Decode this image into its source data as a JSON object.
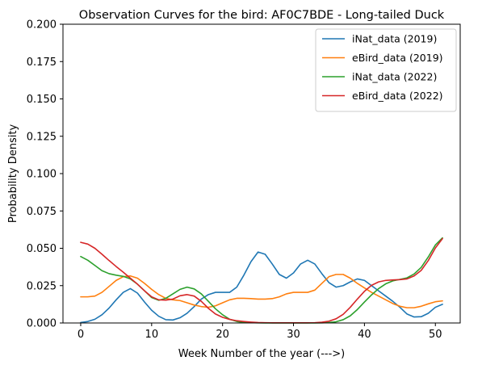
{
  "chart_data": {
    "type": "line",
    "title": "Observation Curves for the bird: AF0C7BDE - Long-tailed Duck",
    "xlabel": "Week Number of the year (--->)",
    "ylabel": "Probability Density",
    "xlim": [
      -2.5,
      53.5
    ],
    "ylim": [
      0,
      0.2
    ],
    "x_ticks": [
      0,
      10,
      20,
      30,
      40,
      50
    ],
    "y_ticks": [
      0.0,
      0.025,
      0.05,
      0.075,
      0.1,
      0.125,
      0.15,
      0.175,
      0.2
    ],
    "y_tick_labels": [
      "0.000",
      "0.025",
      "0.050",
      "0.075",
      "0.100",
      "0.125",
      "0.150",
      "0.175",
      "0.200"
    ],
    "grid": false,
    "legend_position": "upper right",
    "x": [
      0,
      1,
      2,
      3,
      4,
      5,
      6,
      7,
      8,
      9,
      10,
      11,
      12,
      13,
      14,
      15,
      16,
      17,
      18,
      19,
      20,
      21,
      22,
      23,
      24,
      25,
      26,
      27,
      28,
      29,
      30,
      31,
      32,
      33,
      34,
      35,
      36,
      37,
      38,
      39,
      40,
      41,
      42,
      43,
      44,
      45,
      46,
      47,
      48,
      49,
      50,
      51
    ],
    "series": [
      {
        "name": "iNat_data (2019)",
        "color": "#1f77b4",
        "values": [
          0.0003,
          0.001,
          0.0025,
          0.0055,
          0.01,
          0.0155,
          0.0205,
          0.023,
          0.02,
          0.014,
          0.0085,
          0.0045,
          0.0022,
          0.002,
          0.0035,
          0.0065,
          0.011,
          0.016,
          0.019,
          0.0205,
          0.0205,
          0.0205,
          0.024,
          0.032,
          0.041,
          0.0475,
          0.046,
          0.0395,
          0.0325,
          0.03,
          0.0335,
          0.0395,
          0.042,
          0.0395,
          0.033,
          0.027,
          0.024,
          0.025,
          0.0275,
          0.0295,
          0.0285,
          0.025,
          0.0215,
          0.018,
          0.0145,
          0.0105,
          0.006,
          0.004,
          0.0042,
          0.0065,
          0.0105,
          0.0125
        ]
      },
      {
        "name": "eBird_data (2019)",
        "color": "#ff7f0e",
        "values": [
          0.0175,
          0.0175,
          0.018,
          0.0205,
          0.0245,
          0.0285,
          0.031,
          0.0315,
          0.03,
          0.0265,
          0.0225,
          0.019,
          0.0165,
          0.0155,
          0.015,
          0.0135,
          0.012,
          0.011,
          0.0105,
          0.0115,
          0.0135,
          0.0155,
          0.0165,
          0.0165,
          0.0163,
          0.016,
          0.016,
          0.0163,
          0.0175,
          0.0195,
          0.0205,
          0.0205,
          0.0205,
          0.022,
          0.0265,
          0.031,
          0.0325,
          0.0325,
          0.03,
          0.0265,
          0.0235,
          0.0205,
          0.018,
          0.0155,
          0.013,
          0.0112,
          0.0102,
          0.0102,
          0.0112,
          0.0128,
          0.0142,
          0.0148
        ]
      },
      {
        "name": "iNat_data (2022)",
        "color": "#2ca02c",
        "values": [
          0.0445,
          0.042,
          0.0385,
          0.035,
          0.033,
          0.032,
          0.0312,
          0.0295,
          0.026,
          0.0215,
          0.017,
          0.0152,
          0.0165,
          0.0195,
          0.0225,
          0.024,
          0.0228,
          0.0195,
          0.0145,
          0.0095,
          0.0055,
          0.0025,
          0.001,
          0.0004,
          0.0002,
          0.0001,
          0.0,
          0.0,
          0.0,
          0.0,
          0.0,
          0.0,
          0.0,
          0.0,
          0.0001,
          0.0003,
          0.0008,
          0.0022,
          0.0048,
          0.009,
          0.014,
          0.0188,
          0.023,
          0.0262,
          0.0282,
          0.0292,
          0.0302,
          0.0328,
          0.0372,
          0.0442,
          0.0522,
          0.057
        ]
      },
      {
        "name": "eBird_data (2022)",
        "color": "#d62728",
        "values": [
          0.054,
          0.0528,
          0.05,
          0.046,
          0.0418,
          0.0378,
          0.034,
          0.03,
          0.026,
          0.0215,
          0.0175,
          0.0155,
          0.0153,
          0.016,
          0.0182,
          0.019,
          0.018,
          0.0145,
          0.0098,
          0.006,
          0.0038,
          0.0024,
          0.0015,
          0.001,
          0.0006,
          0.0003,
          0.0002,
          0.0001,
          0.0001,
          0.0001,
          0.0001,
          0.0001,
          0.0001,
          0.0002,
          0.0005,
          0.0012,
          0.0028,
          0.0058,
          0.0105,
          0.016,
          0.0212,
          0.0252,
          0.0275,
          0.0285,
          0.0288,
          0.029,
          0.0295,
          0.0315,
          0.0352,
          0.0418,
          0.0502,
          0.0565
        ]
      }
    ]
  }
}
